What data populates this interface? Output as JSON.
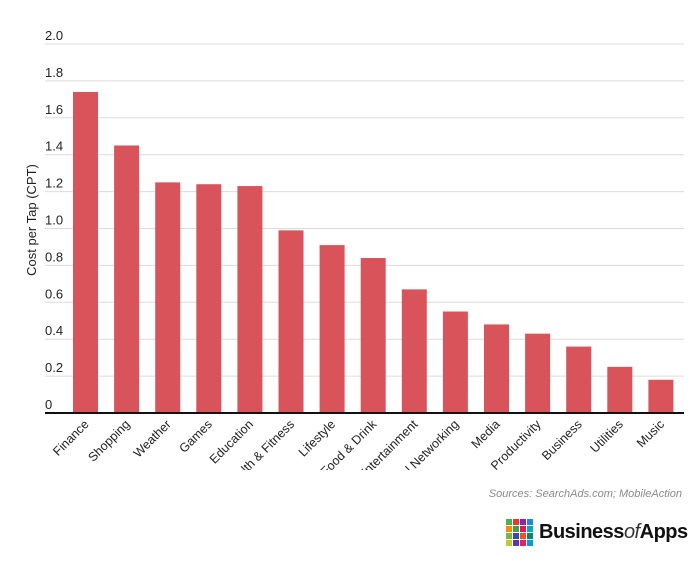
{
  "chart_data": {
    "type": "bar",
    "title": "",
    "xlabel": "",
    "ylabel": "Cost per Tap (CPT)",
    "ylim": [
      0,
      2.0
    ],
    "yticks": [
      "0",
      "0.2",
      "0.4",
      "0.6",
      "0.8",
      "1.0",
      "1.2",
      "1.4",
      "1.6",
      "1.8",
      "2.0"
    ],
    "grid": true,
    "bar_color": "#d9535b",
    "categories": [
      "Finance",
      "Shopping",
      "Weather",
      "Games",
      "Education",
      "Health & Fitness",
      "Lifestyle",
      "Food & Drink",
      "Entertainment",
      "Social Networking",
      "Media",
      "Productivity",
      "Business",
      "Utilities",
      "Music"
    ],
    "values": [
      1.74,
      1.45,
      1.25,
      1.24,
      1.23,
      0.99,
      0.91,
      0.84,
      0.67,
      0.55,
      0.48,
      0.43,
      0.36,
      0.25,
      0.18
    ]
  },
  "source": "Sources: SearchAds.com; MobileAction",
  "brand": {
    "name_part1": "Business",
    "name_part2": "of",
    "name_part3": "Apps",
    "colors": [
      "#4caf50",
      "#e53935",
      "#8e24aa",
      "#1e88e5",
      "#fb8c00",
      "#43a047",
      "#d81b60",
      "#00acc1",
      "#7cb342",
      "#3949ab",
      "#f4511e",
      "#00897b",
      "#c0ca33",
      "#5e35b1",
      "#e91e63",
      "#039be5"
    ]
  }
}
